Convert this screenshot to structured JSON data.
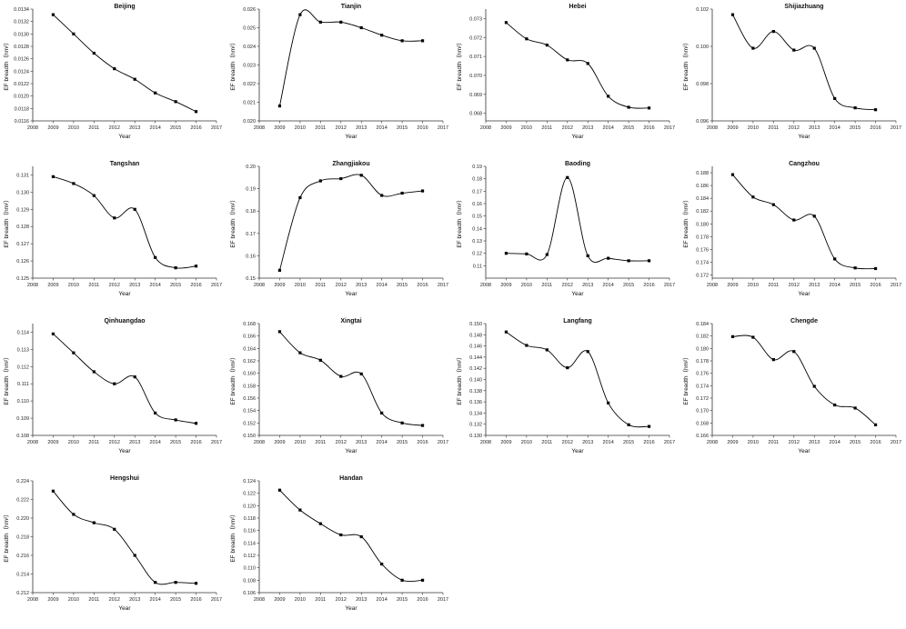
{
  "chart_data": [
    {
      "type": "line",
      "title": "Beijing",
      "xlabel": "Year",
      "ylabel": "EF breadth（hm²）",
      "xlim": [
        2008,
        2017
      ],
      "ylim": [
        0.0116,
        0.0134
      ],
      "xticks": [
        "2008",
        "2009",
        "2010",
        "2011",
        "2012",
        "2013",
        "2014",
        "2015",
        "2016",
        "2017"
      ],
      "yticks": [
        "0.0116",
        "0.0118",
        "0.0120",
        "0.0122",
        "0.0124",
        "0.0126",
        "0.0128",
        "0.0130",
        "0.0132",
        "0.0134"
      ],
      "x": [
        2009,
        2010,
        2011,
        2012,
        2013,
        2014,
        2015,
        2016
      ],
      "values": [
        0.01331,
        0.013,
        0.01269,
        0.01244,
        0.01227,
        0.01205,
        0.01191,
        0.01175
      ]
    },
    {
      "type": "line",
      "title": "Tianjin",
      "xlabel": "Year",
      "ylabel": "EF breadth（hm²）",
      "xlim": [
        2008,
        2017
      ],
      "ylim": [
        0.02,
        0.026
      ],
      "xticks": [
        "2008",
        "2009",
        "2010",
        "2011",
        "2012",
        "2013",
        "2014",
        "2015",
        "2016",
        "2017"
      ],
      "yticks": [
        "0.020",
        "0.021",
        "0.022",
        "0.023",
        "0.024",
        "0.025",
        "0.026"
      ],
      "x": [
        2009,
        2010,
        2011,
        2012,
        2013,
        2014,
        2015,
        2016
      ],
      "values": [
        0.0208,
        0.0257,
        0.0253,
        0.0253,
        0.025,
        0.0246,
        0.0243,
        0.0243
      ]
    },
    {
      "type": "line",
      "title": "Hebei",
      "xlabel": "Year",
      "ylabel": "EF breadth（hm²）",
      "xlim": [
        2008,
        2017
      ],
      "ylim": [
        0.0676,
        0.0735
      ],
      "xticks": [
        "2008",
        "2009",
        "2010",
        "2011",
        "2012",
        "2013",
        "2014",
        "2015",
        "2016",
        "2017"
      ],
      "yticks": [
        "0.068",
        "0.069",
        "0.070",
        "0.071",
        "0.072",
        "0.073"
      ],
      "x": [
        2009,
        2010,
        2011,
        2012,
        2013,
        2014,
        2015,
        2016
      ],
      "values": [
        0.07279,
        0.07193,
        0.0716,
        0.07082,
        0.07063,
        0.0689,
        0.06832,
        0.06828
      ]
    },
    {
      "type": "line",
      "title": "Shijiazhuang",
      "xlabel": "Year",
      "ylabel": "EF breadth（hm²）",
      "xlim": [
        2008,
        2017
      ],
      "ylim": [
        0.096,
        0.102
      ],
      "xticks": [
        "2008",
        "2009",
        "2010",
        "2011",
        "2012",
        "2013",
        "2014",
        "2015",
        "2016",
        "2017"
      ],
      "yticks": [
        "0.096",
        "0.098",
        "0.100",
        "0.102"
      ],
      "x": [
        2009,
        2010,
        2011,
        2012,
        2013,
        2014,
        2015,
        2016
      ],
      "values": [
        0.1017,
        0.0999,
        0.1008,
        0.0998,
        0.0999,
        0.0972,
        0.0967,
        0.0966
      ]
    },
    {
      "type": "line",
      "title": "Tangshan",
      "xlabel": "Year",
      "ylabel": "EF breadth（hm²）",
      "xlim": [
        2008,
        2017
      ],
      "ylim": [
        0.125,
        0.1315
      ],
      "xticks": [
        "2008",
        "2009",
        "2010",
        "2011",
        "2012",
        "2013",
        "2014",
        "2015",
        "2016",
        "2017"
      ],
      "yticks": [
        "0.125",
        "0.126",
        "0.127",
        "0.128",
        "0.129",
        "0.130",
        "0.131"
      ],
      "x": [
        2009,
        2010,
        2011,
        2012,
        2013,
        2014,
        2015,
        2016
      ],
      "values": [
        0.1309,
        0.1305,
        0.1298,
        0.1285,
        0.129,
        0.1262,
        0.1256,
        0.1257
      ]
    },
    {
      "type": "line",
      "title": "Zhangjiakou",
      "xlabel": "Year",
      "ylabel": "EF breadth（hm²）",
      "xlim": [
        2008,
        2017
      ],
      "ylim": [
        0.15,
        0.2
      ],
      "xticks": [
        "2008",
        "2009",
        "2010",
        "2011",
        "2012",
        "2013",
        "2014",
        "2015",
        "2016",
        "2017"
      ],
      "yticks": [
        "0.15",
        "0.16",
        "0.17",
        "0.18",
        "0.19",
        "0.20"
      ],
      "x": [
        2009,
        2010,
        2011,
        2012,
        2013,
        2014,
        2015,
        2016
      ],
      "values": [
        0.1535,
        0.186,
        0.1935,
        0.1945,
        0.196,
        0.187,
        0.188,
        0.189
      ]
    },
    {
      "type": "line",
      "title": "Baoding",
      "xlabel": "Year",
      "ylabel": "EF breadth（hm²）",
      "xlim": [
        2008,
        2017
      ],
      "ylim": [
        0.1,
        0.19
      ],
      "xticks": [
        "2008",
        "2009",
        "2010",
        "2011",
        "2012",
        "2013",
        "2014",
        "2015",
        "2016",
        "2017"
      ],
      "yticks": [
        "0.11",
        "0.12",
        "0.13",
        "0.14",
        "0.15",
        "0.16",
        "0.17",
        "0.18",
        "0.19"
      ],
      "x": [
        2009,
        2010,
        2011,
        2012,
        2013,
        2014,
        2015,
        2016
      ],
      "values": [
        0.12,
        0.1195,
        0.119,
        0.181,
        0.118,
        0.116,
        0.114,
        0.114
      ]
    },
    {
      "type": "line",
      "title": "Cangzhou",
      "xlabel": "Year",
      "ylabel": "EF breadth（hm²）",
      "xlim": [
        2008,
        2017
      ],
      "ylim": [
        0.1715,
        0.189
      ],
      "xticks": [
        "2008",
        "2009",
        "2010",
        "2011",
        "2012",
        "2013",
        "2014",
        "2015",
        "2016",
        "2017"
      ],
      "yticks": [
        "0.172",
        "0.174",
        "0.176",
        "0.178",
        "0.180",
        "0.182",
        "0.184",
        "0.186",
        "0.188"
      ],
      "x": [
        2009,
        2010,
        2011,
        2012,
        2013,
        2014,
        2015,
        2016
      ],
      "values": [
        0.1877,
        0.1842,
        0.183,
        0.1806,
        0.1812,
        0.1745,
        0.1731,
        0.173
      ]
    },
    {
      "type": "line",
      "title": "Qinhuangdao",
      "xlabel": "Year",
      "ylabel": "EF breadth（hm²）",
      "xlim": [
        2008,
        2017
      ],
      "ylim": [
        0.108,
        0.1145
      ],
      "xticks": [
        "2008",
        "2009",
        "2010",
        "2011",
        "2012",
        "2013",
        "2014",
        "2015",
        "2016",
        "2017"
      ],
      "yticks": [
        "0.108",
        "0.109",
        "0.110",
        "0.111",
        "0.112",
        "0.113",
        "0.114"
      ],
      "x": [
        2009,
        2010,
        2011,
        2012,
        2013,
        2014,
        2015,
        2016
      ],
      "values": [
        0.1139,
        0.1128,
        0.1117,
        0.111,
        0.1114,
        0.1093,
        0.1089,
        0.1087
      ]
    },
    {
      "type": "line",
      "title": "Xingtai",
      "xlabel": "Year",
      "ylabel": "EF breadth（hm²）",
      "xlim": [
        2008,
        2017
      ],
      "ylim": [
        0.15,
        0.168
      ],
      "xticks": [
        "2008",
        "2009",
        "2010",
        "2011",
        "2012",
        "2013",
        "2014",
        "2015",
        "2016",
        "2017"
      ],
      "yticks": [
        "0.150",
        "0.152",
        "0.154",
        "0.156",
        "0.158",
        "0.160",
        "0.162",
        "0.164",
        "0.166",
        "0.168"
      ],
      "x": [
        2009,
        2010,
        2011,
        2012,
        2013,
        2014,
        2015,
        2016
      ],
      "values": [
        0.1667,
        0.1633,
        0.1621,
        0.1595,
        0.1599,
        0.1536,
        0.152,
        0.1516
      ]
    },
    {
      "type": "line",
      "title": "Langfang",
      "xlabel": "Year",
      "ylabel": "EF breadth（hm²）",
      "xlim": [
        2008,
        2017
      ],
      "ylim": [
        0.13,
        0.15
      ],
      "xticks": [
        "2008",
        "2009",
        "2010",
        "2011",
        "2012",
        "2013",
        "2014",
        "2015",
        "2016",
        "2017"
      ],
      "yticks": [
        "0.130",
        "0.132",
        "0.134",
        "0.136",
        "0.138",
        "0.140",
        "0.142",
        "0.144",
        "0.146",
        "0.148",
        "0.150"
      ],
      "x": [
        2009,
        2010,
        2011,
        2012,
        2013,
        2014,
        2015,
        2016
      ],
      "values": [
        0.1485,
        0.1461,
        0.1453,
        0.1421,
        0.145,
        0.1358,
        0.1319,
        0.1316
      ]
    },
    {
      "type": "line",
      "title": "Chengde",
      "xlabel": "Year",
      "ylabel": "EF breadth（hm²）",
      "xlim": [
        2008,
        2017
      ],
      "ylim": [
        0.166,
        0.184
      ],
      "xticks": [
        "2008",
        "2009",
        "2010",
        "2011",
        "2012",
        "2013",
        "2014",
        "2015",
        "2016",
        "2017"
      ],
      "yticks": [
        "0.166",
        "0.168",
        "0.170",
        "0.172",
        "0.174",
        "0.176",
        "0.178",
        "0.180",
        "0.182",
        "0.184"
      ],
      "x": [
        2009,
        2010,
        2011,
        2012,
        2013,
        2014,
        2015,
        2016
      ],
      "values": [
        0.1819,
        0.1818,
        0.1782,
        0.1795,
        0.1739,
        0.1709,
        0.1704,
        0.1677
      ]
    },
    {
      "type": "line",
      "title": "Hengshui",
      "xlabel": "Year",
      "ylabel": "EF breadth（hm²）",
      "xlim": [
        2008,
        2017
      ],
      "ylim": [
        0.212,
        0.224
      ],
      "xticks": [
        "2008",
        "2009",
        "2010",
        "2011",
        "2012",
        "2013",
        "2014",
        "2015",
        "2016",
        "2017"
      ],
      "yticks": [
        "0.212",
        "0.214",
        "0.216",
        "0.218",
        "0.220",
        "0.222",
        "0.224"
      ],
      "x": [
        2009,
        2010,
        2011,
        2012,
        2013,
        2014,
        2015,
        2016
      ],
      "values": [
        0.2229,
        0.2204,
        0.2195,
        0.2188,
        0.216,
        0.2131,
        0.2131,
        0.213
      ]
    },
    {
      "type": "line",
      "title": "Handan",
      "xlabel": "Year",
      "ylabel": "EF breadth（hm²）",
      "xlim": [
        2008,
        2017
      ],
      "ylim": [
        0.106,
        0.124
      ],
      "xticks": [
        "2008",
        "2009",
        "2010",
        "2011",
        "2012",
        "2013",
        "2014",
        "2015",
        "2016",
        "2017"
      ],
      "yticks": [
        "0.106",
        "0.108",
        "0.110",
        "0.112",
        "0.114",
        "0.116",
        "0.118",
        "0.120",
        "0.122",
        "0.124"
      ],
      "x": [
        2009,
        2010,
        2011,
        2012,
        2013,
        2014,
        2015,
        2016
      ],
      "values": [
        0.1225,
        0.1193,
        0.1171,
        0.1153,
        0.115,
        0.1106,
        0.108,
        0.108
      ]
    }
  ],
  "colors": {
    "line": "#000000",
    "axis": "#333333",
    "background": "#ffffff"
  }
}
